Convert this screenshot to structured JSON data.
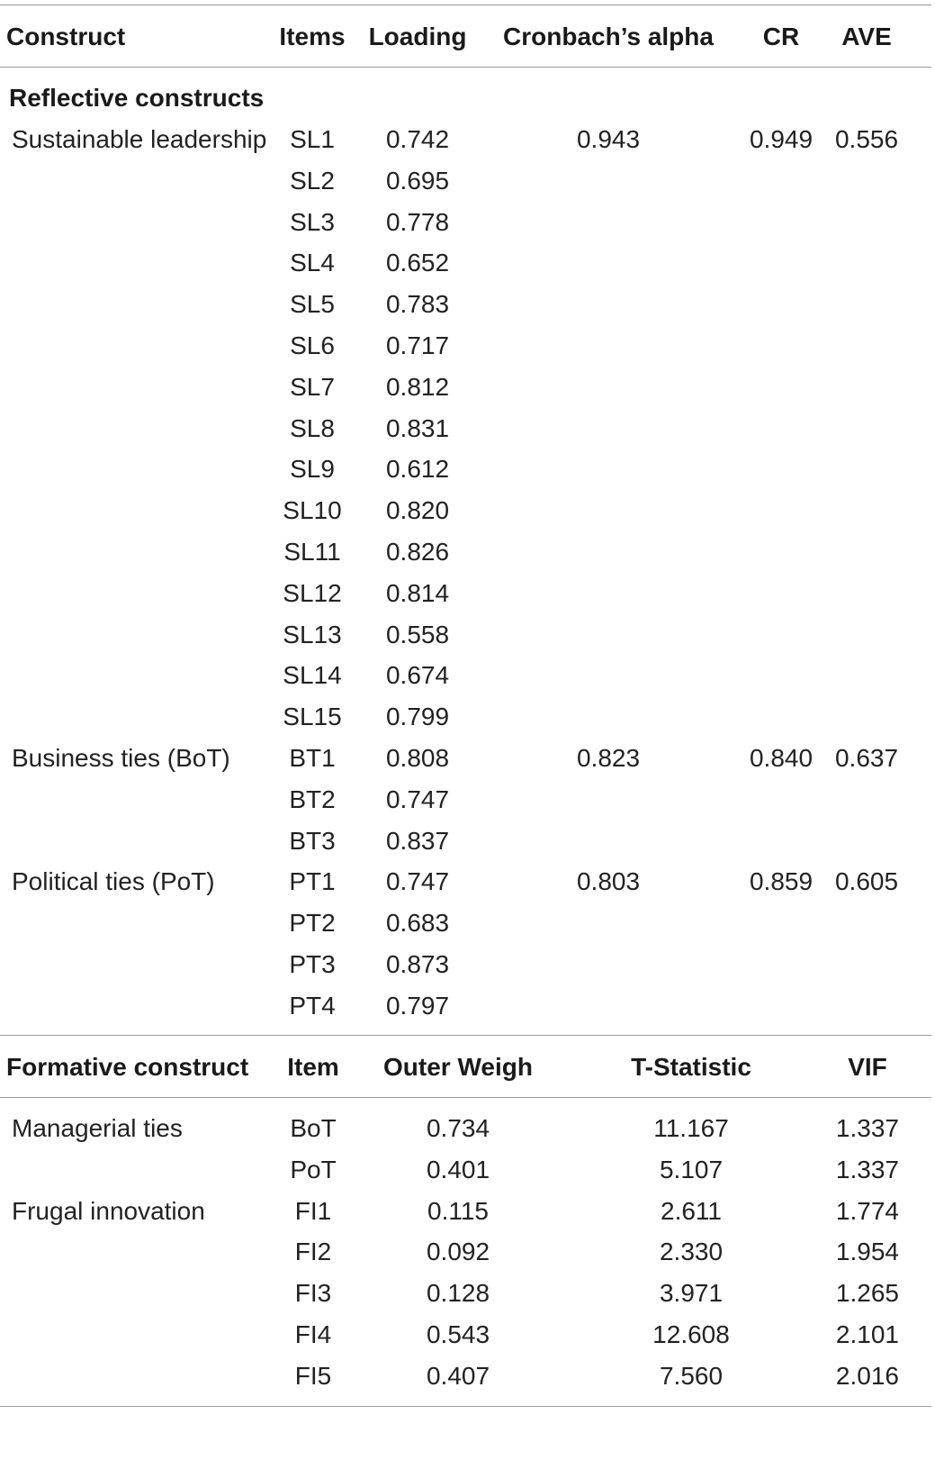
{
  "reflective_header": {
    "construct": "Construct",
    "items": "Items",
    "loading": "Loading",
    "alpha": "Cronbach’s alpha",
    "cr": "CR",
    "ave": "AVE"
  },
  "reflective_section_title": "Reflective constructs",
  "reflective_rows": [
    {
      "construct": "Sustainable leadership",
      "item": "SL1",
      "loading": "0.742",
      "alpha": "0.943",
      "cr": "0.949",
      "ave": "0.556"
    },
    {
      "construct": "",
      "item": "SL2",
      "loading": "0.695",
      "alpha": "",
      "cr": "",
      "ave": ""
    },
    {
      "construct": "",
      "item": "SL3",
      "loading": "0.778",
      "alpha": "",
      "cr": "",
      "ave": ""
    },
    {
      "construct": "",
      "item": "SL4",
      "loading": "0.652",
      "alpha": "",
      "cr": "",
      "ave": ""
    },
    {
      "construct": "",
      "item": "SL5",
      "loading": "0.783",
      "alpha": "",
      "cr": "",
      "ave": ""
    },
    {
      "construct": "",
      "item": "SL6",
      "loading": "0.717",
      "alpha": "",
      "cr": "",
      "ave": ""
    },
    {
      "construct": "",
      "item": "SL7",
      "loading": "0.812",
      "alpha": "",
      "cr": "",
      "ave": ""
    },
    {
      "construct": "",
      "item": "SL8",
      "loading": "0.831",
      "alpha": "",
      "cr": "",
      "ave": ""
    },
    {
      "construct": "",
      "item": "SL9",
      "loading": "0.612",
      "alpha": "",
      "cr": "",
      "ave": ""
    },
    {
      "construct": "",
      "item": "SL10",
      "loading": "0.820",
      "alpha": "",
      "cr": "",
      "ave": ""
    },
    {
      "construct": "",
      "item": "SL11",
      "loading": "0.826",
      "alpha": "",
      "cr": "",
      "ave": ""
    },
    {
      "construct": "",
      "item": "SL12",
      "loading": "0.814",
      "alpha": "",
      "cr": "",
      "ave": ""
    },
    {
      "construct": "",
      "item": "SL13",
      "loading": "0.558",
      "alpha": "",
      "cr": "",
      "ave": ""
    },
    {
      "construct": "",
      "item": "SL14",
      "loading": "0.674",
      "alpha": "",
      "cr": "",
      "ave": ""
    },
    {
      "construct": "",
      "item": "SL15",
      "loading": "0.799",
      "alpha": "",
      "cr": "",
      "ave": ""
    },
    {
      "construct": "Business ties (BoT)",
      "item": "BT1",
      "loading": "0.808",
      "alpha": "0.823",
      "cr": "0.840",
      "ave": "0.637"
    },
    {
      "construct": "",
      "item": "BT2",
      "loading": "0.747",
      "alpha": "",
      "cr": "",
      "ave": ""
    },
    {
      "construct": "",
      "item": "BT3",
      "loading": "0.837",
      "alpha": "",
      "cr": "",
      "ave": ""
    },
    {
      "construct": "Political ties (PoT)",
      "item": "PT1",
      "loading": "0.747",
      "alpha": "0.803",
      "cr": "0.859",
      "ave": "0.605"
    },
    {
      "construct": "",
      "item": "PT2",
      "loading": "0.683",
      "alpha": "",
      "cr": "",
      "ave": ""
    },
    {
      "construct": "",
      "item": "PT3",
      "loading": "0.873",
      "alpha": "",
      "cr": "",
      "ave": ""
    },
    {
      "construct": "",
      "item": "PT4",
      "loading": "0.797",
      "alpha": "",
      "cr": "",
      "ave": ""
    }
  ],
  "formative_header": {
    "construct": "Formative construct",
    "item": "Item",
    "weight": "Outer Weigh",
    "tstat": "T-Statistic",
    "vif": "VIF"
  },
  "formative_rows": [
    {
      "construct": "Managerial ties",
      "item": "BoT",
      "weight": "0.734",
      "tstat": "11.167",
      "vif": "1.337"
    },
    {
      "construct": "",
      "item": "PoT",
      "weight": "0.401",
      "tstat": "5.107",
      "vif": "1.337"
    },
    {
      "construct": "Frugal innovation",
      "item": "FI1",
      "weight": "0.115",
      "tstat": "2.611",
      "vif": "1.774"
    },
    {
      "construct": "",
      "item": "FI2",
      "weight": "0.092",
      "tstat": "2.330",
      "vif": "1.954"
    },
    {
      "construct": "",
      "item": "FI3",
      "weight": "0.128",
      "tstat": "3.971",
      "vif": "1.265"
    },
    {
      "construct": "",
      "item": "FI4",
      "weight": "0.543",
      "tstat": "12.608",
      "vif": "2.101"
    },
    {
      "construct": "",
      "item": "FI5",
      "weight": "0.407",
      "tstat": "7.560",
      "vif": "2.016"
    }
  ]
}
